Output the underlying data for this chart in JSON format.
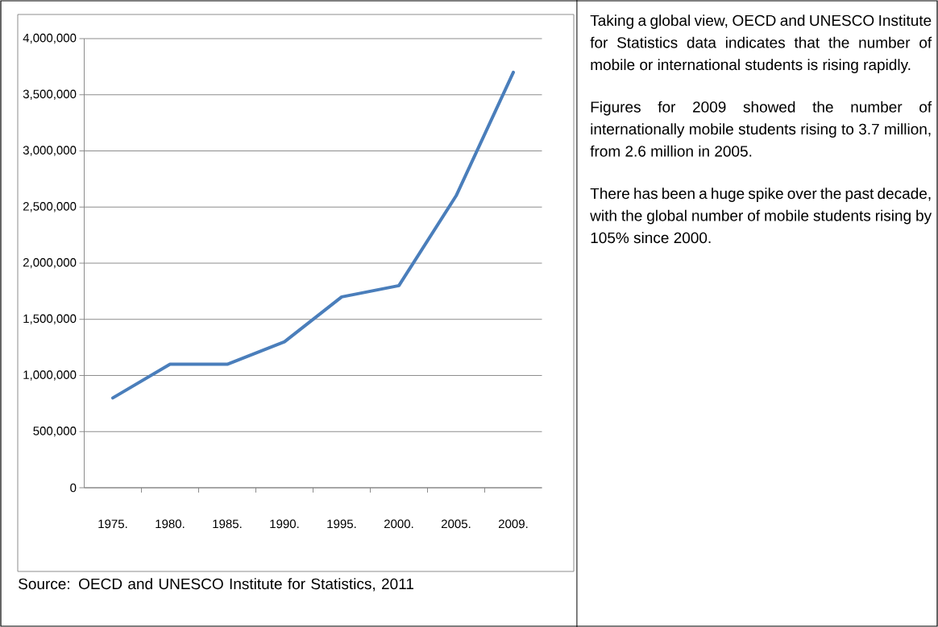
{
  "chart_data": [
    {
      "type": "line",
      "categories": [
        "1975.",
        "1980.",
        "1985.",
        "1990.",
        "1995.",
        "2000.",
        "2005.",
        "2009."
      ],
      "values": [
        800000,
        1100000,
        1100000,
        1300000,
        1700000,
        1800000,
        2600000,
        3700000
      ],
      "color": "#4a7ebb",
      "ylim": [
        0,
        4000000
      ],
      "yticks": [
        0,
        {
          "value": 500000,
          "label": "500,000"
        },
        {
          "value": 1000000,
          "label": "1,000,000"
        },
        {
          "value": 1500000,
          "label": "1,500,000"
        },
        {
          "value": 2000000,
          "label": "2,000,000"
        },
        {
          "value": 2500000,
          "label": "2,500,000"
        },
        {
          "value": 3000000,
          "label": "3,000,000"
        },
        {
          "value": 3500000,
          "label": "3,500,000"
        },
        {
          "value": 4000000,
          "label": "4,000,000"
        }
      ],
      "grid": "y",
      "annotations": [
        "Source: OECD and UNESCO Institute for Statistics, 2011"
      ]
    },
    {
      "type": "other",
      "annotations": [
        "Taking a global view, OECD and UNESCO Institute for Statistics data indicates that the number of mobile or international students is rising rapidly.",
        "Figures for 2009 showed the number of internationally mobile students rising to 3.7 million, from 2.6 million in 2005.",
        "There has been a huge spike over the past decade, with the global number of mobile students rising by 105% since 2000."
      ]
    }
  ]
}
